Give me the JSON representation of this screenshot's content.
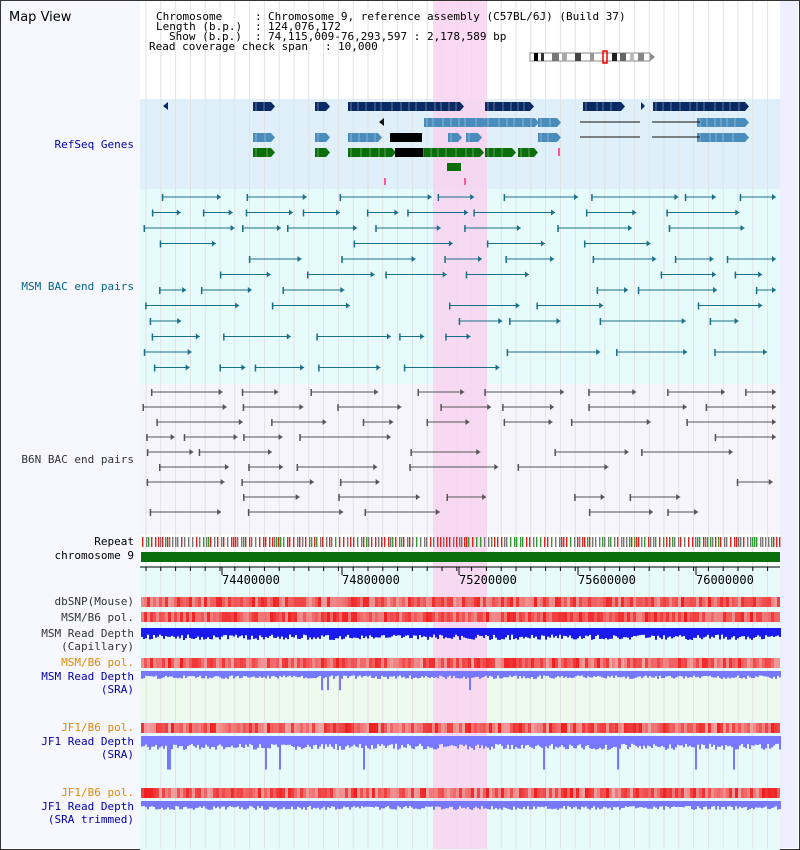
{
  "title": "Map View",
  "info": {
    "chromosome_label": "Chromosome",
    "chromosome_value": "Chromosome 9, reference assembly (C57BL/6J) (Build 37)",
    "length_label": "Length (b.p.)",
    "length_value": "124,076,172",
    "show_label": "Show (b.p.)",
    "show_value": "74,115,009-76,293,597 : 2,178,589 bp",
    "coverage_label": "Read coverage check span",
    "coverage_value": "10,000"
  },
  "tracks": {
    "refseq": "RefSeq Genes",
    "msm_bac": "MSM BAC end pairs",
    "b6n_bac": "B6N BAC end pairs",
    "repeat": "Repeat",
    "chromosome": "chromosome 9",
    "dbsnp": "dbSNP(Mouse)",
    "msm_b6_pol_1": "MSM/B6 pol.",
    "msm_read_depth_cap_1": "MSM Read Depth",
    "msm_read_depth_cap_2": "(Capillary)",
    "msm_b6_pol_2": "MSM/B6 pol.",
    "msm_read_depth_sra_1": "MSM Read Depth",
    "msm_read_depth_sra_2": "(SRA)",
    "jf1_b6_pol_1": "JF1/B6 pol.",
    "jf1_read_depth_sra_1": "JF1 Read Depth",
    "jf1_read_depth_sra_2": "(SRA)",
    "jf1_b6_pol_2": "JF1/B6 pol.",
    "jf1_read_depth_trim_1": "JF1 Read Depth",
    "jf1_read_depth_trim_2": "(SRA trimmed)"
  },
  "axis": {
    "ticks": [
      "74400000",
      "74800000",
      "75200000",
      "75600000",
      "76000000"
    ]
  },
  "colors": {
    "refseq_bg": "#dff0fb",
    "msm_bg": "#e6fbfb",
    "b6n_bg": "#f5f5fb",
    "highlight": "#f8d4f0",
    "dark_navy": "#0a2a66",
    "mid_blue": "#4a8cbc",
    "green": "#0a6e0a",
    "teal_line": "#1a6f8a",
    "grey_line": "#555555",
    "depth_blue": "#1a1aee",
    "depth_light": "#7777ff"
  }
}
